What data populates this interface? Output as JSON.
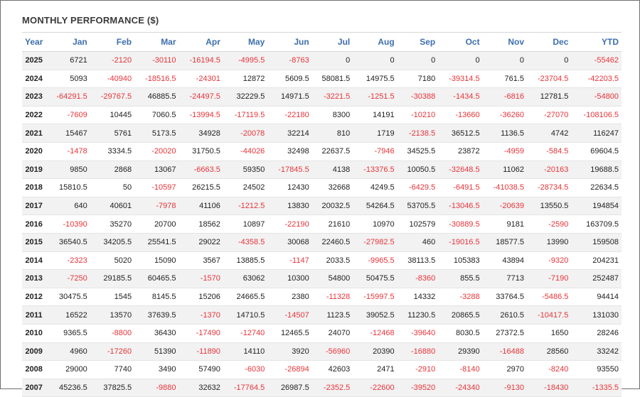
{
  "title": "MONTHLY PERFORMANCE ($)",
  "columns": [
    "Year",
    "Jan",
    "Feb",
    "Mar",
    "Apr",
    "May",
    "Jun",
    "Jul",
    "Aug",
    "Sep",
    "Oct",
    "Nov",
    "Dec",
    "YTD"
  ],
  "rows": [
    {
      "year": "2025",
      "values": [
        "6721",
        "-2120",
        "-30110",
        "-16194.5",
        "-4995.5",
        "-8763",
        "0",
        "0",
        "0",
        "0",
        "0",
        "0",
        "-55462"
      ]
    },
    {
      "year": "2024",
      "values": [
        "5093",
        "-40940",
        "-18516.5",
        "-24301",
        "12872",
        "5609.5",
        "58081.5",
        "14975.5",
        "7180",
        "-39314.5",
        "761.5",
        "-23704.5",
        "-42203.5"
      ]
    },
    {
      "year": "2023",
      "values": [
        "-64291.5",
        "-29767.5",
        "46885.5",
        "-24497.5",
        "32229.5",
        "14971.5",
        "-3221.5",
        "-1251.5",
        "-30388",
        "-1434.5",
        "-6816",
        "12781.5",
        "-54800"
      ]
    },
    {
      "year": "2022",
      "values": [
        "-7609",
        "10445",
        "7060.5",
        "-13994.5",
        "-17119.5",
        "-22180",
        "8300",
        "14191",
        "-10210",
        "-13660",
        "-36260",
        "-27070",
        "-108106.5"
      ]
    },
    {
      "year": "2021",
      "values": [
        "15467",
        "5761",
        "5173.5",
        "34928",
        "-20078",
        "32214",
        "810",
        "1719",
        "-2138.5",
        "36512.5",
        "1136.5",
        "4742",
        "116247"
      ]
    },
    {
      "year": "2020",
      "values": [
        "-1478",
        "3334.5",
        "-20020",
        "31750.5",
        "-44026",
        "32498",
        "22637.5",
        "-7946",
        "34525.5",
        "23872",
        "-4959",
        "-584.5",
        "69604.5"
      ]
    },
    {
      "year": "2019",
      "values": [
        "9850",
        "2868",
        "13067",
        "-6663.5",
        "59350",
        "-17845.5",
        "4138",
        "-13376.5",
        "10050.5",
        "-32648.5",
        "11062",
        "-20163",
        "19688.5"
      ]
    },
    {
      "year": "2018",
      "values": [
        "15810.5",
        "50",
        "-10597",
        "26215.5",
        "24502",
        "12430",
        "32668",
        "4249.5",
        "-6429.5",
        "-6491.5",
        "-41038.5",
        "-28734.5",
        "22634.5"
      ]
    },
    {
      "year": "2017",
      "values": [
        "640",
        "40601",
        "-7978",
        "41106",
        "-1212.5",
        "13830",
        "20032.5",
        "54264.5",
        "53705.5",
        "-13046.5",
        "-20639",
        "13550.5",
        "194854"
      ]
    },
    {
      "year": "2016",
      "values": [
        "-10390",
        "35270",
        "20700",
        "18562",
        "10897",
        "-22190",
        "21610",
        "10970",
        "102579",
        "-30889.5",
        "9181",
        "-2590",
        "163709.5"
      ]
    },
    {
      "year": "2015",
      "values": [
        "36540.5",
        "34205.5",
        "25541.5",
        "29022",
        "-4358.5",
        "30068",
        "22460.5",
        "-27982.5",
        "460",
        "-19016.5",
        "18577.5",
        "13990",
        "159508"
      ]
    },
    {
      "year": "2014",
      "values": [
        "-2323",
        "5020",
        "15090",
        "3567",
        "13885.5",
        "-1147",
        "2033.5",
        "-9965.5",
        "38113.5",
        "105383",
        "43894",
        "-9320",
        "204231"
      ]
    },
    {
      "year": "2013",
      "values": [
        "-7250",
        "29185.5",
        "60465.5",
        "-1570",
        "63062",
        "10300",
        "54800",
        "50475.5",
        "-8360",
        "855.5",
        "7713",
        "-7190",
        "252487"
      ]
    },
    {
      "year": "2012",
      "values": [
        "30475.5",
        "1545",
        "8145.5",
        "15206",
        "24665.5",
        "2380",
        "-11328",
        "-15997.5",
        "14332",
        "-3288",
        "33764.5",
        "-5486.5",
        "94414"
      ]
    },
    {
      "year": "2011",
      "values": [
        "16522",
        "13570",
        "37639.5",
        "-1370",
        "14710.5",
        "-14507",
        "1123.5",
        "39052.5",
        "11230.5",
        "20865.5",
        "2610.5",
        "-10417.5",
        "131030"
      ]
    },
    {
      "year": "2010",
      "values": [
        "9365.5",
        "-8800",
        "36430",
        "-17490",
        "-12740",
        "12465.5",
        "24070",
        "-12468",
        "-39640",
        "8030.5",
        "27372.5",
        "1650",
        "28246"
      ]
    },
    {
      "year": "2009",
      "values": [
        "4960",
        "-17260",
        "51390",
        "-11890",
        "14110",
        "3920",
        "-56960",
        "20390",
        "-16880",
        "29390",
        "-16488",
        "28560",
        "33242"
      ]
    },
    {
      "year": "2008",
      "values": [
        "29000",
        "7740",
        "3490",
        "57490",
        "-6030",
        "-26894",
        "42603",
        "2471",
        "-2910",
        "-8140",
        "2970",
        "-8240",
        "93550"
      ]
    },
    {
      "year": "2007",
      "values": [
        "45236.5",
        "37825.5",
        "-9880",
        "32632",
        "-17764.5",
        "26987.5",
        "-2352.5",
        "-22600",
        "-39520",
        "-24340",
        "-9130",
        "-18430",
        "-1335.5"
      ]
    }
  ],
  "colors": {
    "header": "#3d6fae",
    "negative": "#e8343a",
    "stripe": "#f2f2f2"
  }
}
